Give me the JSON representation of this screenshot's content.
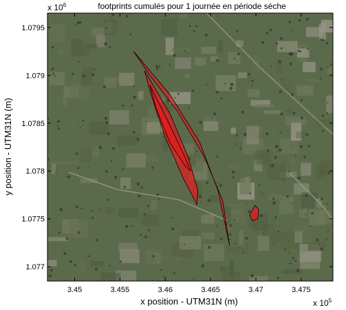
{
  "chart_data": {
    "type": "area",
    "title": "footprints cumulés pour 1 journée en période sèche",
    "xlabel": "x position - UTM31N (m)",
    "ylabel": "y position - UTM31N (m)",
    "x_exponent_label": "x 10",
    "x_exponent_power": "5",
    "y_exponent_label": "x 10",
    "y_exponent_power": "6",
    "xlim": [
      3.447,
      3.4785
    ],
    "ylim": [
      1.07685,
      1.07965
    ],
    "x_ticks": [
      3.45,
      3.455,
      3.46,
      3.465,
      3.47,
      3.475
    ],
    "x_tick_labels": [
      "3.45",
      "3.455",
      "3.46",
      "3.465",
      "3.47",
      "3.475"
    ],
    "y_ticks": [
      1.077,
      1.0775,
      1.078,
      1.0785,
      1.079,
      1.0795
    ],
    "y_tick_labels": [
      "1.077",
      "1.0775",
      "1.078",
      "1.0785",
      "1.079",
      "1.0795"
    ],
    "background": "satellite imagery",
    "grid": false,
    "colors": {
      "footprint_fill": "#e11d1d",
      "footprint_edge": "#2a0000",
      "axes": "#000000"
    },
    "contours": [
      {
        "level": "outer",
        "points": [
          [
            3.4565,
            1.07925
          ],
          [
            3.4605,
            1.0788
          ],
          [
            3.4638,
            1.0783
          ],
          [
            3.4658,
            1.0778
          ],
          [
            3.4667,
            1.0774
          ],
          [
            3.4671,
            1.07722
          ],
          [
            3.4663,
            1.0777
          ],
          [
            3.4643,
            1.07815
          ],
          [
            3.4613,
            1.07863
          ],
          [
            3.4583,
            1.079
          ]
        ]
      },
      {
        "level": "middle",
        "points": [
          [
            3.4577,
            1.07905
          ],
          [
            3.4605,
            1.0786
          ],
          [
            3.4625,
            1.07815
          ],
          [
            3.4636,
            1.0778
          ],
          [
            3.4635,
            1.07765
          ],
          [
            3.462,
            1.07792
          ],
          [
            3.46,
            1.07835
          ],
          [
            3.4585,
            1.07878
          ]
        ]
      },
      {
        "level": "inner",
        "points": [
          [
            3.4583,
            1.0789
          ],
          [
            3.4605,
            1.07848
          ],
          [
            3.462,
            1.07818
          ],
          [
            3.4628,
            1.078
          ],
          [
            3.4622,
            1.07805
          ],
          [
            3.4605,
            1.0783
          ],
          [
            3.459,
            1.07865
          ]
        ]
      },
      {
        "level": "blob",
        "points": [
          [
            3.4693,
            1.07754
          ],
          [
            3.4699,
            1.07764
          ],
          [
            3.4703,
            1.0776
          ],
          [
            3.4702,
            1.0775
          ],
          [
            3.4696,
            1.07748
          ]
        ]
      }
    ]
  }
}
